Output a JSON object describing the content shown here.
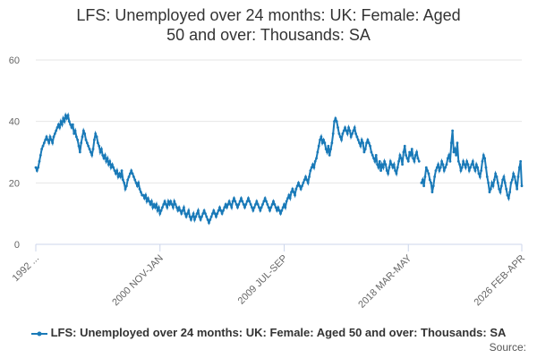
{
  "chart_data": {
    "type": "line",
    "title": "LFS: Unemployed over 24 months: UK: Female: Aged 50 and over: Thousands: SA",
    "source": "Source:",
    "ylim": [
      0,
      60
    ],
    "yticks": [
      0,
      20,
      40,
      60
    ],
    "grid": true,
    "categories": [
      "1992 ...",
      null,
      null,
      null,
      null,
      null,
      null,
      null,
      null,
      null,
      null,
      null,
      null,
      null,
      null,
      null,
      null,
      null,
      null,
      null,
      null,
      null,
      null,
      null,
      null,
      null,
      null,
      null,
      null,
      null,
      null,
      null,
      null,
      null,
      null,
      null,
      null,
      null,
      null,
      null,
      null,
      null,
      null,
      null,
      null,
      null,
      null,
      null,
      null,
      null,
      null,
      null,
      null,
      null,
      null,
      null,
      null,
      null,
      null,
      null,
      null,
      null,
      null,
      null,
      null,
      null,
      null,
      null,
      null,
      null,
      null,
      null,
      null,
      null,
      null,
      null,
      null,
      null,
      null,
      null,
      null,
      null,
      null,
      null,
      null,
      null,
      null,
      null,
      null,
      null,
      null,
      null,
      null,
      null,
      null,
      null,
      null,
      null,
      null,
      null,
      null,
      null,
      null,
      null,
      "2000 NOV-JAN",
      null,
      null,
      null,
      null,
      null,
      null,
      null,
      null,
      null,
      null,
      null,
      null,
      null,
      null,
      null,
      null,
      null,
      null,
      null,
      null,
      null,
      null,
      null,
      null,
      null,
      null,
      null,
      null,
      null,
      null,
      null,
      null,
      null,
      null,
      null,
      null,
      null,
      null,
      null,
      null,
      null,
      null,
      null,
      null,
      null,
      null,
      null,
      null,
      null,
      null,
      null,
      null,
      null,
      null,
      null,
      null,
      null,
      null,
      null,
      null,
      null,
      null,
      null,
      null,
      null,
      null,
      null,
      null,
      null,
      null,
      null,
      null,
      null,
      null,
      null,
      null,
      null,
      null,
      null,
      null,
      null,
      null,
      null,
      null,
      null,
      null,
      null,
      null,
      null,
      null,
      null,
      null,
      null,
      null,
      null,
      null,
      null,
      null,
      null,
      null,
      null,
      null,
      null,
      "2009 JUL-SEP",
      null,
      null,
      null,
      null,
      null,
      null,
      null,
      null,
      null,
      null,
      null,
      null,
      null,
      null,
      null,
      null,
      null,
      null,
      null,
      null,
      null,
      null,
      null,
      null,
      null,
      null,
      null,
      null,
      null,
      null,
      null,
      null,
      null,
      null,
      null,
      null,
      null,
      null,
      null,
      null,
      null,
      null,
      null,
      null,
      null,
      null,
      null,
      null,
      null,
      null,
      null,
      null,
      null,
      null,
      null,
      null,
      null,
      null,
      null,
      null,
      null,
      null,
      null,
      null,
      null,
      null,
      null,
      null,
      null,
      null,
      null,
      null,
      null,
      null,
      null,
      null,
      null,
      null,
      null,
      null,
      null,
      null,
      null,
      null,
      null,
      null,
      null,
      null,
      null,
      null,
      null,
      null,
      null,
      null,
      null,
      null,
      null,
      null,
      null,
      null,
      null,
      null,
      null,
      "2018 MAR-MAY",
      null,
      null,
      null,
      null,
      null,
      null,
      null,
      null,
      null,
      null,
      null,
      null,
      null,
      null,
      null,
      null,
      null,
      null,
      null,
      null,
      null,
      null,
      null,
      null,
      null,
      null,
      null,
      null,
      null,
      null,
      null,
      null,
      null,
      null,
      null,
      null,
      null,
      null,
      null,
      null,
      null,
      null,
      null,
      null,
      null,
      null,
      null,
      null,
      null,
      null,
      null,
      null,
      null,
      null,
      null,
      null,
      null,
      null,
      null,
      null,
      null,
      null,
      null,
      null,
      null,
      null,
      null,
      null,
      null,
      null,
      null,
      null,
      null,
      null,
      null,
      null,
      null,
      null,
      null,
      null,
      null,
      null,
      null,
      null,
      null,
      null,
      null,
      null,
      null,
      null,
      null,
      null,
      null,
      null,
      "2026 FEB-APR"
    ],
    "series": [
      {
        "name": "LFS: Unemployed over 24 months: UK: Female: Aged 50 and over: Thousands: SA",
        "color": "#1a7ab8",
        "values": [
          25,
          24,
          25,
          27,
          29,
          31,
          32,
          33,
          34,
          35,
          34,
          33,
          35,
          34,
          33,
          35,
          36,
          37,
          38,
          39,
          38,
          40,
          39,
          41,
          40,
          42,
          41,
          42,
          40,
          39,
          38,
          39,
          36,
          37,
          35,
          34,
          32,
          30,
          33,
          35,
          37,
          36,
          34,
          33,
          32,
          31,
          30,
          29,
          31,
          34,
          36,
          35,
          33,
          32,
          30,
          31,
          29,
          28,
          29,
          27,
          28,
          26,
          27,
          25,
          26,
          25,
          24,
          23,
          24,
          22,
          23,
          22,
          24,
          21,
          20,
          18,
          19,
          21,
          22,
          23,
          24,
          23,
          22,
          21,
          20,
          19,
          20,
          18,
          17,
          16,
          16,
          15,
          16,
          14,
          15,
          14,
          13,
          14,
          12,
          13,
          12,
          13,
          11,
          12,
          10,
          11,
          12,
          13,
          14,
          13,
          12,
          14,
          13,
          14,
          13,
          12,
          14,
          13,
          12,
          11,
          12,
          11,
          10,
          11,
          12,
          10,
          9,
          10,
          11,
          9,
          8,
          9,
          10,
          8,
          9,
          10,
          11,
          9,
          8,
          9,
          10,
          11,
          10,
          9,
          8,
          7,
          8,
          9,
          10,
          11,
          10,
          9,
          10,
          11,
          12,
          11,
          10,
          11,
          12,
          13,
          12,
          13,
          14,
          13,
          12,
          14,
          15,
          14,
          13,
          12,
          13,
          14,
          15,
          14,
          13,
          12,
          13,
          14,
          15,
          14,
          13,
          12,
          11,
          12,
          13,
          14,
          13,
          12,
          11,
          12,
          13,
          14,
          15,
          14,
          13,
          12,
          11,
          12,
          13,
          14,
          13,
          12,
          11,
          12,
          11,
          10,
          11,
          12,
          13,
          12,
          14,
          15,
          16,
          15,
          17,
          18,
          17,
          16,
          18,
          19,
          20,
          19,
          18,
          19,
          20,
          21,
          22,
          21,
          20,
          22,
          24,
          25,
          26,
          25,
          27,
          28,
          30,
          32,
          34,
          35,
          33,
          34,
          33,
          31,
          30,
          32,
          29,
          31,
          33,
          36,
          40,
          41,
          40,
          38,
          36,
          35,
          34,
          36,
          37,
          38,
          37,
          36,
          38,
          37,
          35,
          36,
          37,
          38,
          36,
          35,
          34,
          33,
          32,
          34,
          33,
          30,
          31,
          33,
          34,
          33,
          32,
          30,
          29,
          28,
          27,
          29,
          26,
          25,
          27,
          24,
          26,
          25,
          27,
          26,
          24,
          23,
          25,
          27,
          26,
          25,
          26,
          24,
          23,
          25,
          27,
          29,
          28,
          26,
          30,
          32,
          29,
          28,
          27,
          30,
          29,
          31,
          28,
          27,
          29,
          30,
          28,
          27,
          null,
          20,
          21,
          19,
          22,
          25,
          24,
          23,
          21,
          20,
          17,
          19,
          22,
          24,
          25,
          26,
          24,
          25,
          27,
          26,
          24,
          25,
          26,
          28,
          29,
          27,
          33,
          37,
          30,
          31,
          29,
          33,
          27,
          26,
          24,
          25,
          27,
          26,
          25,
          27,
          26,
          24,
          25,
          26,
          27,
          25,
          24,
          26,
          25,
          23,
          22,
          24,
          27,
          29,
          28,
          25,
          22,
          20,
          17,
          18,
          20,
          19,
          21,
          23,
          22,
          20,
          18,
          17,
          19,
          21,
          22,
          20,
          18,
          16,
          15,
          17,
          20,
          21,
          23,
          22,
          20,
          18,
          22,
          25,
          27,
          19
        ]
      }
    ]
  }
}
